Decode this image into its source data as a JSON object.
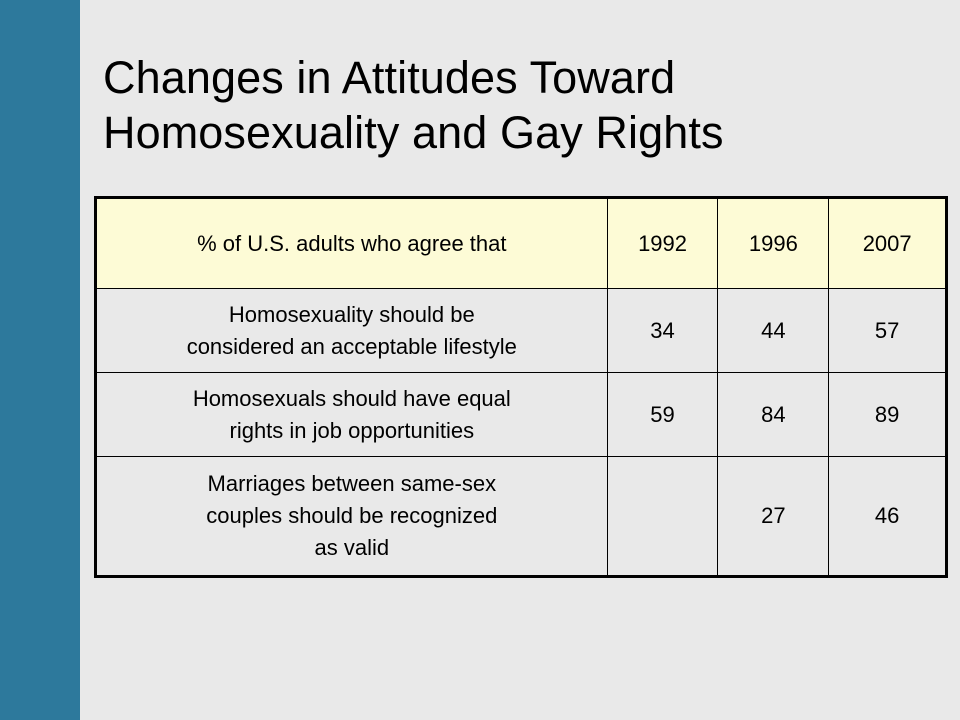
{
  "slide": {
    "title_line1": "Changes in Attitudes Toward",
    "title_line2": "Homosexuality and Gay Rights",
    "accent_color": "#2d799c",
    "header_fill_color": "#fdfbd6"
  },
  "table": {
    "header": {
      "label": "% of U.S. adults who agree that",
      "years": [
        "1992",
        "1996",
        "2007"
      ]
    },
    "rows": [
      {
        "statement_lines": [
          "Homosexuality should be",
          "considered an acceptable lifestyle"
        ],
        "values": [
          "34",
          "44",
          "57"
        ]
      },
      {
        "statement_lines": [
          "Homosexuals should have equal",
          "rights in job opportunities"
        ],
        "values": [
          "59",
          "84",
          "89"
        ]
      },
      {
        "statement_lines": [
          "Marriages between same-sex",
          "couples should be recognized",
          "as valid"
        ],
        "values": [
          "",
          "27",
          "46"
        ]
      }
    ]
  }
}
